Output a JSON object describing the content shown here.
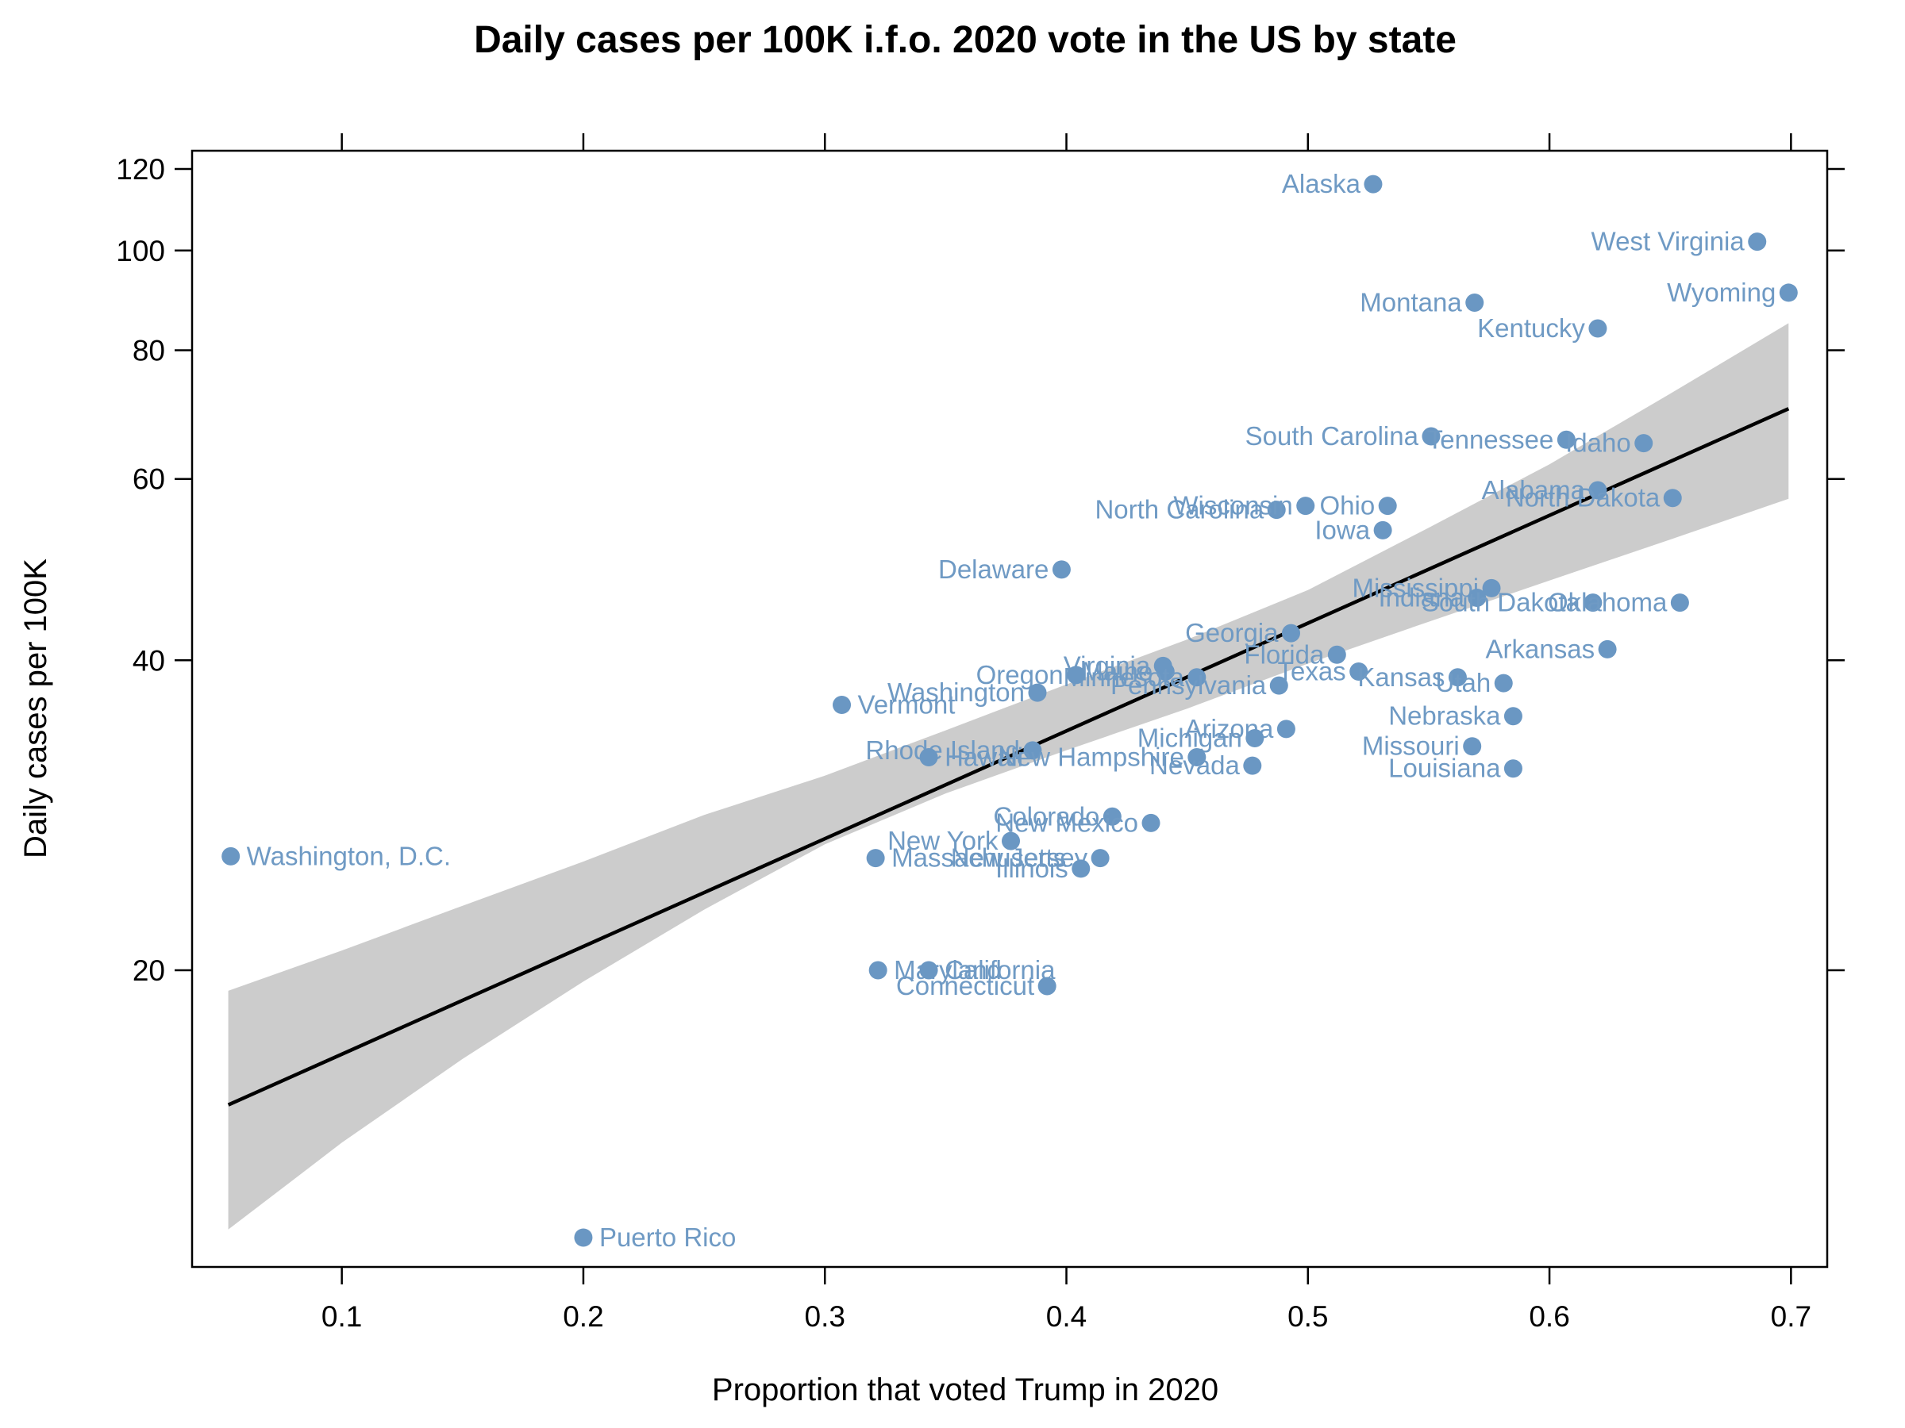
{
  "chart_data": {
    "type": "scatter",
    "title": "Daily cases per 100K i.f.o. 2020 vote in the US by state",
    "xlabel": "Proportion that voted Trump in 2020",
    "ylabel": "Daily cases per 100K",
    "xlim": [
      0.038,
      0.715
    ],
    "ylim": [
      10.3,
      125
    ],
    "y_scale": "log",
    "x_ticks": [
      0.1,
      0.2,
      0.3,
      0.4,
      0.5,
      0.6,
      0.7
    ],
    "x_tick_labels": [
      "0.1",
      "0.2",
      "0.3",
      "0.4",
      "0.5",
      "0.6",
      "0.7"
    ],
    "y_ticks": [
      20,
      40,
      60,
      80,
      100,
      120
    ],
    "y_tick_labels": [
      "20",
      "40",
      "60",
      "80",
      "100",
      "120"
    ],
    "grid": false,
    "colors": {
      "points": "#6a97c3",
      "labels": "#6f9ac4",
      "fit_line": "#000000",
      "confidence_band": "#cccccc"
    },
    "fit": {
      "x": [
        0.053,
        0.699
      ],
      "y": [
        14.8,
        70.2
      ]
    },
    "band": {
      "x": [
        0.053,
        0.1,
        0.15,
        0.2,
        0.25,
        0.3,
        0.35,
        0.4,
        0.45,
        0.5,
        0.55,
        0.6,
        0.65,
        0.699
      ],
      "lower": [
        11.2,
        13.6,
        16.4,
        19.5,
        22.9,
        26.5,
        29.7,
        32.7,
        35.9,
        39.7,
        43.6,
        47.8,
        52.4,
        57.4
      ],
      "upper": [
        19.1,
        20.9,
        23.1,
        25.5,
        28.3,
        30.9,
        34.2,
        37.9,
        41.9,
        46.8,
        53.8,
        62.0,
        72.6,
        85.0
      ]
    },
    "points": [
      {
        "label": "Alaska",
        "x": 0.527,
        "y": 116,
        "side": "left"
      },
      {
        "label": "West Virginia",
        "x": 0.686,
        "y": 102,
        "side": "left"
      },
      {
        "label": "Wyoming",
        "x": 0.699,
        "y": 91,
        "side": "left"
      },
      {
        "label": "Montana",
        "x": 0.569,
        "y": 89,
        "side": "left"
      },
      {
        "label": "Kentucky",
        "x": 0.62,
        "y": 84,
        "side": "left"
      },
      {
        "label": "South Carolina",
        "x": 0.551,
        "y": 66,
        "side": "left"
      },
      {
        "label": "Tennessee",
        "x": 0.607,
        "y": 65.5,
        "side": "left"
      },
      {
        "label": "Idaho",
        "x": 0.639,
        "y": 65,
        "side": "left"
      },
      {
        "label": "Alabama",
        "x": 0.62,
        "y": 58.5,
        "side": "left"
      },
      {
        "label": "North Dakota",
        "x": 0.651,
        "y": 57.5,
        "side": "left"
      },
      {
        "label": "North Carolina",
        "x": 0.487,
        "y": 56,
        "side": "left"
      },
      {
        "label": "Wisconsin",
        "x": 0.499,
        "y": 56.5,
        "side": "left"
      },
      {
        "label": "Ohio",
        "x": 0.533,
        "y": 56.5,
        "side": "left"
      },
      {
        "label": "Iowa",
        "x": 0.531,
        "y": 53.5,
        "side": "left"
      },
      {
        "label": "Delaware",
        "x": 0.398,
        "y": 49,
        "side": "left"
      },
      {
        "label": "Mississippi",
        "x": 0.576,
        "y": 47,
        "side": "left"
      },
      {
        "label": "Indiana",
        "x": 0.57,
        "y": 46,
        "side": "left"
      },
      {
        "label": "South Dakota",
        "x": 0.618,
        "y": 45.5,
        "side": "left"
      },
      {
        "label": "Oklahoma",
        "x": 0.654,
        "y": 45.5,
        "side": "left"
      },
      {
        "label": "Georgia",
        "x": 0.493,
        "y": 42.5,
        "side": "left"
      },
      {
        "label": "Arkansas",
        "x": 0.624,
        "y": 41,
        "side": "left"
      },
      {
        "label": "Florida",
        "x": 0.512,
        "y": 40.5,
        "side": "left"
      },
      {
        "label": "Texas",
        "x": 0.521,
        "y": 39,
        "side": "left"
      },
      {
        "label": "Kansas",
        "x": 0.562,
        "y": 38.5,
        "side": "left"
      },
      {
        "label": "Utah",
        "x": 0.581,
        "y": 38,
        "side": "left"
      },
      {
        "label": "Virginia",
        "x": 0.44,
        "y": 39.5,
        "side": "left"
      },
      {
        "label": "Maine",
        "x": 0.441,
        "y": 39,
        "side": "left"
      },
      {
        "label": "Minnesota",
        "x": 0.454,
        "y": 38.5,
        "side": "left"
      },
      {
        "label": "Oregon",
        "x": 0.404,
        "y": 38.7,
        "side": "left"
      },
      {
        "label": "Pennsylvania",
        "x": 0.488,
        "y": 37.8,
        "side": "left"
      },
      {
        "label": "Washington",
        "x": 0.388,
        "y": 37.2,
        "side": "left"
      },
      {
        "label": "Vermont",
        "x": 0.307,
        "y": 36.2,
        "side": "right"
      },
      {
        "label": "Nebraska",
        "x": 0.585,
        "y": 35.3,
        "side": "left"
      },
      {
        "label": "Arizona",
        "x": 0.491,
        "y": 34.3,
        "side": "left"
      },
      {
        "label": "Michigan",
        "x": 0.478,
        "y": 33.6,
        "side": "left"
      },
      {
        "label": "Missouri",
        "x": 0.568,
        "y": 33,
        "side": "left"
      },
      {
        "label": "Rhode Island",
        "x": 0.386,
        "y": 32.7,
        "side": "left"
      },
      {
        "label": "Hawaii",
        "x": 0.343,
        "y": 32.2,
        "side": "right"
      },
      {
        "label": "New Hampshire",
        "x": 0.454,
        "y": 32.2,
        "side": "left"
      },
      {
        "label": "Nevada",
        "x": 0.477,
        "y": 31.6,
        "side": "left"
      },
      {
        "label": "Louisiana",
        "x": 0.585,
        "y": 31.4,
        "side": "left"
      },
      {
        "label": "Colorado",
        "x": 0.419,
        "y": 28.2,
        "side": "left"
      },
      {
        "label": "New Mexico",
        "x": 0.435,
        "y": 27.8,
        "side": "left"
      },
      {
        "label": "New York",
        "x": 0.377,
        "y": 26.7,
        "side": "left"
      },
      {
        "label": "New Jersey",
        "x": 0.414,
        "y": 25.7,
        "side": "left"
      },
      {
        "label": "Massachusetts",
        "x": 0.321,
        "y": 25.7,
        "side": "right"
      },
      {
        "label": "Illinois",
        "x": 0.406,
        "y": 25.1,
        "side": "left"
      },
      {
        "label": "Washington, D.C.",
        "x": 0.054,
        "y": 25.8,
        "side": "right"
      },
      {
        "label": "Maryland",
        "x": 0.322,
        "y": 20.0,
        "side": "right"
      },
      {
        "label": "California",
        "x": 0.343,
        "y": 20.0,
        "side": "right"
      },
      {
        "label": "Connecticut",
        "x": 0.392,
        "y": 19.3,
        "side": "left"
      },
      {
        "label": "Puerto Rico",
        "x": 0.2,
        "y": 11.0,
        "side": "right"
      }
    ]
  }
}
